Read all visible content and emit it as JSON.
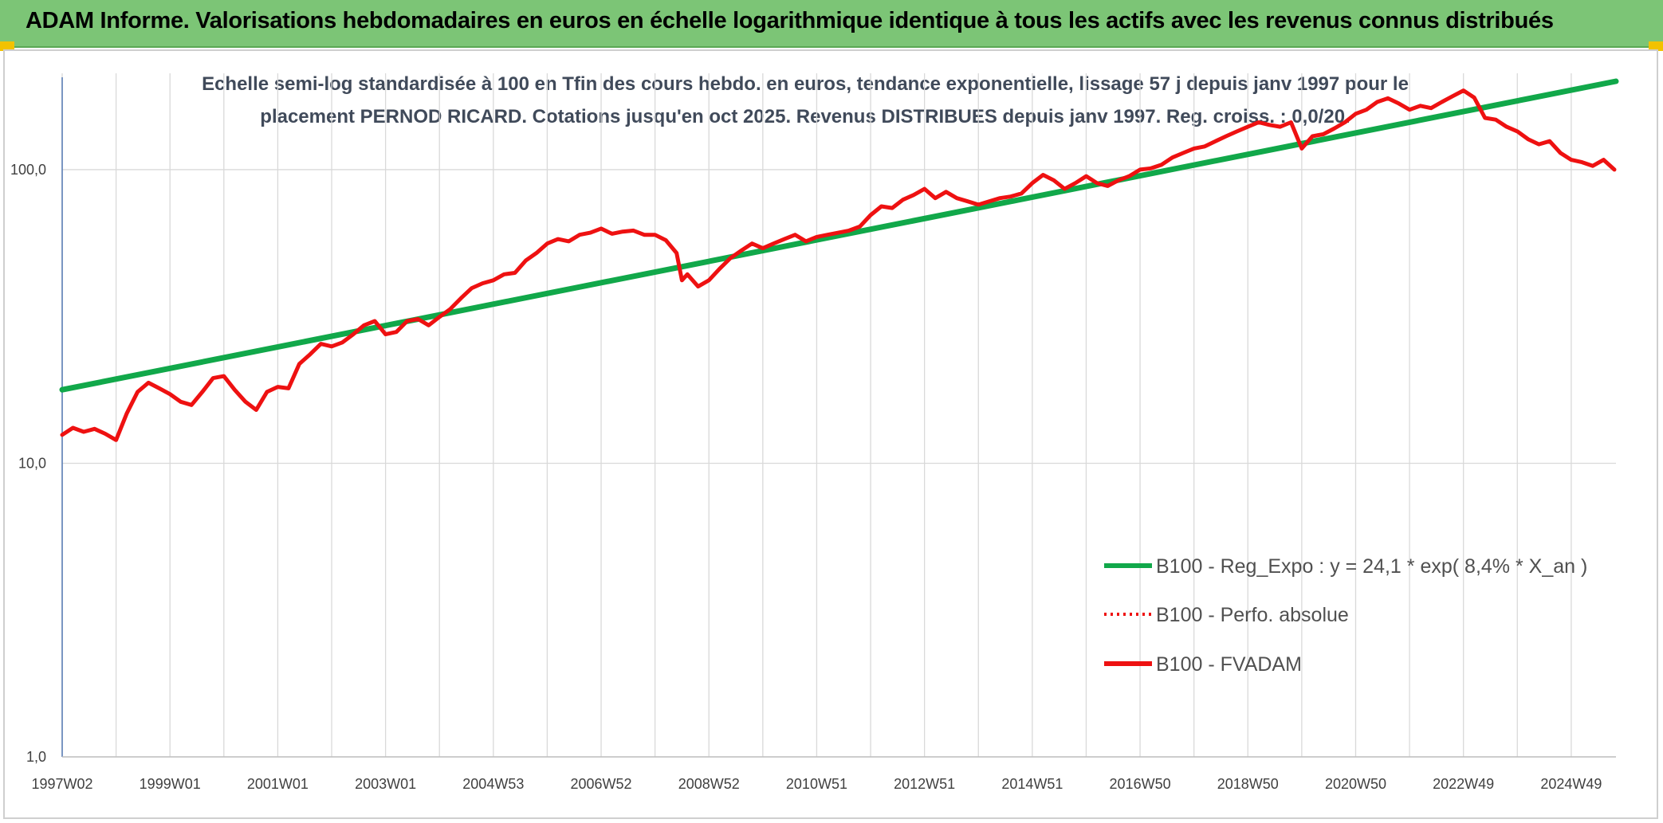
{
  "header": {
    "title": "ADAM Informe. Valorisations hebdomadaires en euros en échelle logarithmique identique à tous les actifs avec les revenus connus distribués"
  },
  "colors": {
    "header_bg": "#7cc576",
    "regression": "#11a84a",
    "fvadam": "#ee1111",
    "perfo": "#ee1111",
    "grid": "#d9d9d9",
    "corner": "#f2c200"
  },
  "chart_data": {
    "type": "line",
    "title_lines": [
      "Echelle semi-log standardisée à 100 en Tfin des cours hebdo. en euros, tendance exponentielle, lissage 57 j depuis janv 1997 pour le",
      "placement PERNOD RICARD. Cotations jusqu'en oct 2025. Revenus DISTRIBUES depuis janv 1997. Reg. croiss. : 0,0/20."
    ],
    "y_scale": "log",
    "ylim": [
      1,
      200
    ],
    "y_ticks": [
      {
        "value": 1,
        "label": "1,0"
      },
      {
        "value": 10,
        "label": "10,0"
      },
      {
        "value": 100,
        "label": "100,0"
      }
    ],
    "xlim": [
      1997.0,
      2025.83
    ],
    "x_ticks": [
      {
        "x": 1997.0,
        "label": "1997W02"
      },
      {
        "x": 1999.0,
        "label": "1999W01"
      },
      {
        "x": 2001.0,
        "label": "2001W01"
      },
      {
        "x": 2003.0,
        "label": "2003W01"
      },
      {
        "x": 2005.0,
        "label": "2004W53"
      },
      {
        "x": 2007.0,
        "label": "2006W52"
      },
      {
        "x": 2009.0,
        "label": "2008W52"
      },
      {
        "x": 2011.0,
        "label": "2010W51"
      },
      {
        "x": 2013.0,
        "label": "2012W51"
      },
      {
        "x": 2015.0,
        "label": "2014W51"
      },
      {
        "x": 2017.0,
        "label": "2016W50"
      },
      {
        "x": 2019.0,
        "label": "2018W50"
      },
      {
        "x": 2021.0,
        "label": "2020W50"
      },
      {
        "x": 2023.0,
        "label": "2022W49"
      },
      {
        "x": 2025.0,
        "label": "2024W49"
      }
    ],
    "legend_position": "right-bottom",
    "series": [
      {
        "name": "B100 - Reg_Expo : y = 24,1 * exp( 8,4% *  X_an )",
        "style": "solid-thick",
        "color": "#11a84a",
        "x": [
          1997.0,
          2025.83
        ],
        "y": [
          17.8,
          200
        ]
      },
      {
        "name": "B100 - Perfo. absolue",
        "style": "dotted",
        "color": "#ee1111",
        "x": [],
        "y": []
      },
      {
        "name": "B100 - FVADAM",
        "style": "solid-thick",
        "color": "#ee1111",
        "x": [
          1997.0,
          1997.2,
          1997.4,
          1997.6,
          1997.8,
          1998.0,
          1998.2,
          1998.4,
          1998.6,
          1998.8,
          1999.0,
          1999.2,
          1999.4,
          1999.6,
          1999.8,
          2000.0,
          2000.2,
          2000.4,
          2000.6,
          2000.8,
          2001.0,
          2001.2,
          2001.4,
          2001.6,
          2001.8,
          2002.0,
          2002.2,
          2002.4,
          2002.6,
          2002.8,
          2003.0,
          2003.2,
          2003.4,
          2003.6,
          2003.8,
          2004.0,
          2004.2,
          2004.4,
          2004.6,
          2004.8,
          2005.0,
          2005.2,
          2005.4,
          2005.6,
          2005.8,
          2006.0,
          2006.2,
          2006.4,
          2006.6,
          2006.8,
          2007.0,
          2007.2,
          2007.4,
          2007.6,
          2007.8,
          2008.0,
          2008.2,
          2008.4,
          2008.5,
          2008.6,
          2008.8,
          2009.0,
          2009.2,
          2009.4,
          2009.6,
          2009.8,
          2010.0,
          2010.2,
          2010.4,
          2010.6,
          2010.8,
          2011.0,
          2011.2,
          2011.4,
          2011.6,
          2011.8,
          2012.0,
          2012.2,
          2012.4,
          2012.6,
          2012.8,
          2013.0,
          2013.2,
          2013.4,
          2013.6,
          2013.8,
          2014.0,
          2014.2,
          2014.4,
          2014.6,
          2014.8,
          2015.0,
          2015.2,
          2015.4,
          2015.6,
          2015.8,
          2016.0,
          2016.2,
          2016.4,
          2016.6,
          2016.8,
          2017.0,
          2017.2,
          2017.4,
          2017.6,
          2017.8,
          2018.0,
          2018.2,
          2018.4,
          2018.6,
          2018.8,
          2019.0,
          2019.2,
          2019.4,
          2019.6,
          2019.8,
          2020.0,
          2020.2,
          2020.4,
          2020.6,
          2020.8,
          2021.0,
          2021.2,
          2021.4,
          2021.6,
          2021.8,
          2022.0,
          2022.2,
          2022.4,
          2022.6,
          2022.8,
          2023.0,
          2023.2,
          2023.4,
          2023.6,
          2023.8,
          2024.0,
          2024.2,
          2024.4,
          2024.6,
          2024.8,
          2025.0,
          2025.2,
          2025.4,
          2025.6,
          2025.8
        ],
        "y": [
          12.5,
          13.2,
          12.8,
          13.1,
          12.6,
          12.0,
          14.8,
          17.5,
          18.8,
          18.0,
          17.2,
          16.2,
          15.8,
          17.5,
          19.5,
          19.8,
          17.8,
          16.2,
          15.2,
          17.5,
          18.2,
          18.0,
          21.8,
          23.5,
          25.5,
          25.0,
          25.8,
          27.5,
          29.5,
          30.5,
          27.5,
          28.0,
          30.5,
          31.0,
          29.5,
          31.5,
          33.5,
          36.5,
          39.5,
          41.0,
          42.0,
          44.0,
          44.5,
          49.0,
          52.0,
          56.0,
          58.0,
          57.0,
          60.0,
          61.0,
          63.0,
          60.5,
          61.5,
          62.0,
          60.0,
          60.0,
          57.5,
          52.0,
          42.0,
          44.0,
          40.0,
          42.0,
          46.0,
          50.0,
          53.0,
          56.0,
          54.0,
          56.0,
          58.0,
          60.0,
          57.0,
          59.0,
          60.0,
          61.0,
          62.0,
          64.0,
          70.0,
          75.0,
          74.0,
          79.0,
          82.0,
          86.0,
          80.0,
          84.0,
          80.0,
          78.0,
          76.0,
          78.0,
          80.0,
          81.0,
          83.0,
          90.0,
          96.0,
          92.0,
          86.0,
          90.0,
          95.0,
          90.0,
          88.0,
          92.0,
          95.0,
          100.0,
          101.0,
          104.0,
          110.0,
          114.0,
          118.0,
          120.0,
          125.0,
          130.0,
          135.0,
          140.0,
          145.0,
          142.0,
          140.0,
          145.0,
          118.0,
          130.0,
          132.0,
          138.0,
          145.0,
          155.0,
          160.0,
          170.0,
          175.0,
          168.0,
          160.0,
          165.0,
          162.0,
          170.0,
          178.0,
          186.0,
          176.0,
          150.0,
          148.0,
          140.0,
          135.0,
          127.0,
          122.0,
          125.0,
          114.0,
          108.0,
          106.0,
          103.0,
          108.0,
          100.0
        ]
      }
    ]
  }
}
